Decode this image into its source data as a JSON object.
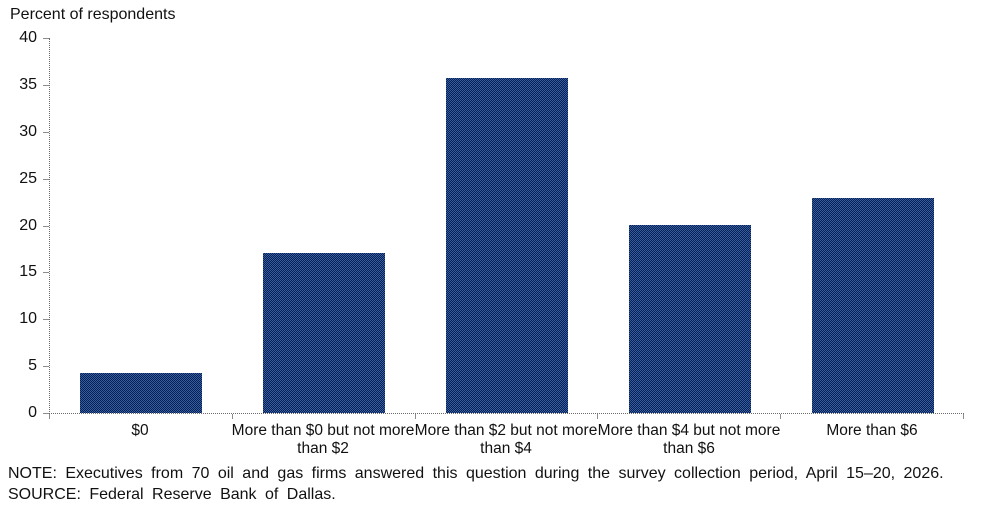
{
  "chart_data": {
    "type": "bar",
    "title": "Percent of respondents",
    "categories": [
      "$0",
      "More than $0 but not more than $2",
      "More than $2 but not more than $4",
      "More than $4 but not more than $6",
      "More than $6"
    ],
    "values": [
      4.3,
      17.1,
      35.7,
      20.0,
      22.9
    ],
    "xlabel": "",
    "ylabel": "Percent of respondents",
    "ylim": [
      0,
      40
    ],
    "yticks": [
      0,
      5,
      10,
      15,
      20,
      25,
      30,
      35,
      40
    ],
    "grid": false,
    "legend": "none",
    "bar_color": "#1c3e7b",
    "bar_dither_colors": [
      "#2d5cbb",
      "#0e2138"
    ],
    "axis_line_style": "dotted",
    "axis_line_color": "#6a6a6a"
  },
  "footnotes": {
    "note": "NOTE: Executives from 70 oil and gas firms answered this question during the survey collection period, April 15–20, 2026.",
    "source": "SOURCE: Federal Reserve Bank of Dallas."
  }
}
